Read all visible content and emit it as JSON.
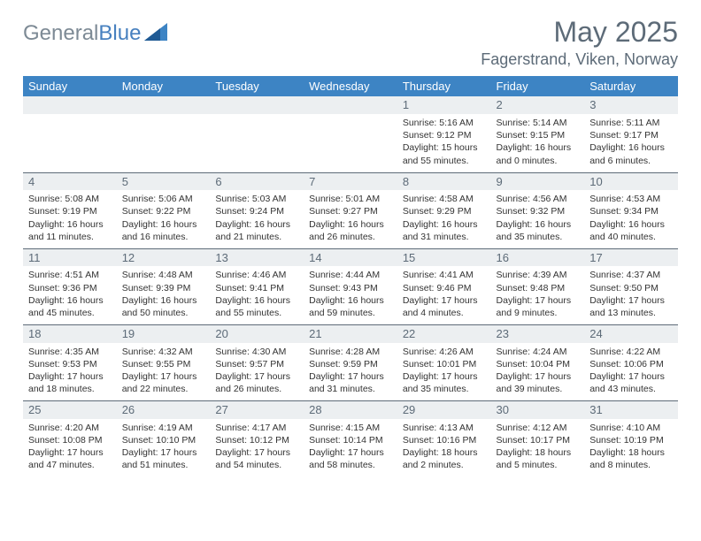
{
  "brand": {
    "part1": "General",
    "part2": "Blue"
  },
  "title": "May 2025",
  "location": "Fagerstrand, Viken, Norway",
  "colors": {
    "header_bg": "#3d84c4",
    "header_text": "#ffffff",
    "daynum_bg": "#eceff1",
    "text_muted": "#5d6b78",
    "body_text": "#333333",
    "border": "#5d6b78",
    "logo_gray": "#7d8a95",
    "logo_blue": "#4780bf"
  },
  "typography": {
    "title_fontsize": 32,
    "location_fontsize": 18,
    "weekday_fontsize": 13,
    "daynum_fontsize": 13,
    "cell_fontsize": 10.5
  },
  "weekdays": [
    "Sunday",
    "Monday",
    "Tuesday",
    "Wednesday",
    "Thursday",
    "Friday",
    "Saturday"
  ],
  "weeks": [
    [
      {
        "n": "",
        "sr": "",
        "ss": "",
        "dl": ""
      },
      {
        "n": "",
        "sr": "",
        "ss": "",
        "dl": ""
      },
      {
        "n": "",
        "sr": "",
        "ss": "",
        "dl": ""
      },
      {
        "n": "",
        "sr": "",
        "ss": "",
        "dl": ""
      },
      {
        "n": "1",
        "sr": "Sunrise: 5:16 AM",
        "ss": "Sunset: 9:12 PM",
        "dl": "Daylight: 15 hours and 55 minutes."
      },
      {
        "n": "2",
        "sr": "Sunrise: 5:14 AM",
        "ss": "Sunset: 9:15 PM",
        "dl": "Daylight: 16 hours and 0 minutes."
      },
      {
        "n": "3",
        "sr": "Sunrise: 5:11 AM",
        "ss": "Sunset: 9:17 PM",
        "dl": "Daylight: 16 hours and 6 minutes."
      }
    ],
    [
      {
        "n": "4",
        "sr": "Sunrise: 5:08 AM",
        "ss": "Sunset: 9:19 PM",
        "dl": "Daylight: 16 hours and 11 minutes."
      },
      {
        "n": "5",
        "sr": "Sunrise: 5:06 AM",
        "ss": "Sunset: 9:22 PM",
        "dl": "Daylight: 16 hours and 16 minutes."
      },
      {
        "n": "6",
        "sr": "Sunrise: 5:03 AM",
        "ss": "Sunset: 9:24 PM",
        "dl": "Daylight: 16 hours and 21 minutes."
      },
      {
        "n": "7",
        "sr": "Sunrise: 5:01 AM",
        "ss": "Sunset: 9:27 PM",
        "dl": "Daylight: 16 hours and 26 minutes."
      },
      {
        "n": "8",
        "sr": "Sunrise: 4:58 AM",
        "ss": "Sunset: 9:29 PM",
        "dl": "Daylight: 16 hours and 31 minutes."
      },
      {
        "n": "9",
        "sr": "Sunrise: 4:56 AM",
        "ss": "Sunset: 9:32 PM",
        "dl": "Daylight: 16 hours and 35 minutes."
      },
      {
        "n": "10",
        "sr": "Sunrise: 4:53 AM",
        "ss": "Sunset: 9:34 PM",
        "dl": "Daylight: 16 hours and 40 minutes."
      }
    ],
    [
      {
        "n": "11",
        "sr": "Sunrise: 4:51 AM",
        "ss": "Sunset: 9:36 PM",
        "dl": "Daylight: 16 hours and 45 minutes."
      },
      {
        "n": "12",
        "sr": "Sunrise: 4:48 AM",
        "ss": "Sunset: 9:39 PM",
        "dl": "Daylight: 16 hours and 50 minutes."
      },
      {
        "n": "13",
        "sr": "Sunrise: 4:46 AM",
        "ss": "Sunset: 9:41 PM",
        "dl": "Daylight: 16 hours and 55 minutes."
      },
      {
        "n": "14",
        "sr": "Sunrise: 4:44 AM",
        "ss": "Sunset: 9:43 PM",
        "dl": "Daylight: 16 hours and 59 minutes."
      },
      {
        "n": "15",
        "sr": "Sunrise: 4:41 AM",
        "ss": "Sunset: 9:46 PM",
        "dl": "Daylight: 17 hours and 4 minutes."
      },
      {
        "n": "16",
        "sr": "Sunrise: 4:39 AM",
        "ss": "Sunset: 9:48 PM",
        "dl": "Daylight: 17 hours and 9 minutes."
      },
      {
        "n": "17",
        "sr": "Sunrise: 4:37 AM",
        "ss": "Sunset: 9:50 PM",
        "dl": "Daylight: 17 hours and 13 minutes."
      }
    ],
    [
      {
        "n": "18",
        "sr": "Sunrise: 4:35 AM",
        "ss": "Sunset: 9:53 PM",
        "dl": "Daylight: 17 hours and 18 minutes."
      },
      {
        "n": "19",
        "sr": "Sunrise: 4:32 AM",
        "ss": "Sunset: 9:55 PM",
        "dl": "Daylight: 17 hours and 22 minutes."
      },
      {
        "n": "20",
        "sr": "Sunrise: 4:30 AM",
        "ss": "Sunset: 9:57 PM",
        "dl": "Daylight: 17 hours and 26 minutes."
      },
      {
        "n": "21",
        "sr": "Sunrise: 4:28 AM",
        "ss": "Sunset: 9:59 PM",
        "dl": "Daylight: 17 hours and 31 minutes."
      },
      {
        "n": "22",
        "sr": "Sunrise: 4:26 AM",
        "ss": "Sunset: 10:01 PM",
        "dl": "Daylight: 17 hours and 35 minutes."
      },
      {
        "n": "23",
        "sr": "Sunrise: 4:24 AM",
        "ss": "Sunset: 10:04 PM",
        "dl": "Daylight: 17 hours and 39 minutes."
      },
      {
        "n": "24",
        "sr": "Sunrise: 4:22 AM",
        "ss": "Sunset: 10:06 PM",
        "dl": "Daylight: 17 hours and 43 minutes."
      }
    ],
    [
      {
        "n": "25",
        "sr": "Sunrise: 4:20 AM",
        "ss": "Sunset: 10:08 PM",
        "dl": "Daylight: 17 hours and 47 minutes."
      },
      {
        "n": "26",
        "sr": "Sunrise: 4:19 AM",
        "ss": "Sunset: 10:10 PM",
        "dl": "Daylight: 17 hours and 51 minutes."
      },
      {
        "n": "27",
        "sr": "Sunrise: 4:17 AM",
        "ss": "Sunset: 10:12 PM",
        "dl": "Daylight: 17 hours and 54 minutes."
      },
      {
        "n": "28",
        "sr": "Sunrise: 4:15 AM",
        "ss": "Sunset: 10:14 PM",
        "dl": "Daylight: 17 hours and 58 minutes."
      },
      {
        "n": "29",
        "sr": "Sunrise: 4:13 AM",
        "ss": "Sunset: 10:16 PM",
        "dl": "Daylight: 18 hours and 2 minutes."
      },
      {
        "n": "30",
        "sr": "Sunrise: 4:12 AM",
        "ss": "Sunset: 10:17 PM",
        "dl": "Daylight: 18 hours and 5 minutes."
      },
      {
        "n": "31",
        "sr": "Sunrise: 4:10 AM",
        "ss": "Sunset: 10:19 PM",
        "dl": "Daylight: 18 hours and 8 minutes."
      }
    ]
  ]
}
